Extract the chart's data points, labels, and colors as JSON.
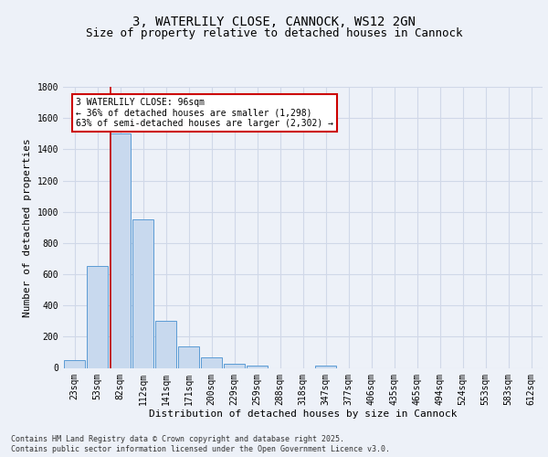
{
  "title": "3, WATERLILY CLOSE, CANNOCK, WS12 2GN",
  "subtitle": "Size of property relative to detached houses in Cannock",
  "xlabel": "Distribution of detached houses by size in Cannock",
  "ylabel": "Number of detached properties",
  "bar_labels": [
    "23sqm",
    "53sqm",
    "82sqm",
    "112sqm",
    "141sqm",
    "171sqm",
    "200sqm",
    "229sqm",
    "259sqm",
    "288sqm",
    "318sqm",
    "347sqm",
    "377sqm",
    "406sqm",
    "435sqm",
    "465sqm",
    "494sqm",
    "524sqm",
    "553sqm",
    "583sqm",
    "612sqm"
  ],
  "bar_heights": [
    50,
    650,
    1500,
    950,
    300,
    140,
    65,
    25,
    15,
    0,
    0,
    15,
    0,
    0,
    0,
    0,
    0,
    0,
    0,
    0,
    0
  ],
  "bar_color": "#c8d9ee",
  "bar_edge_color": "#5b9bd5",
  "ylim": [
    0,
    1800
  ],
  "red_line_x": 1.57,
  "annotation_text": "3 WATERLILY CLOSE: 96sqm\n← 36% of detached houses are smaller (1,298)\n63% of semi-detached houses are larger (2,302) →",
  "annotation_box_color": "#ffffff",
  "annotation_box_edge": "#cc0000",
  "footer_line1": "Contains HM Land Registry data © Crown copyright and database right 2025.",
  "footer_line2": "Contains public sector information licensed under the Open Government Licence v3.0.",
  "bg_color": "#edf1f8",
  "plot_bg_color": "#edf1f8",
  "grid_color": "#d0d8e8",
  "title_fontsize": 10,
  "subtitle_fontsize": 9,
  "axis_label_fontsize": 8,
  "tick_fontsize": 7,
  "footer_fontsize": 6
}
